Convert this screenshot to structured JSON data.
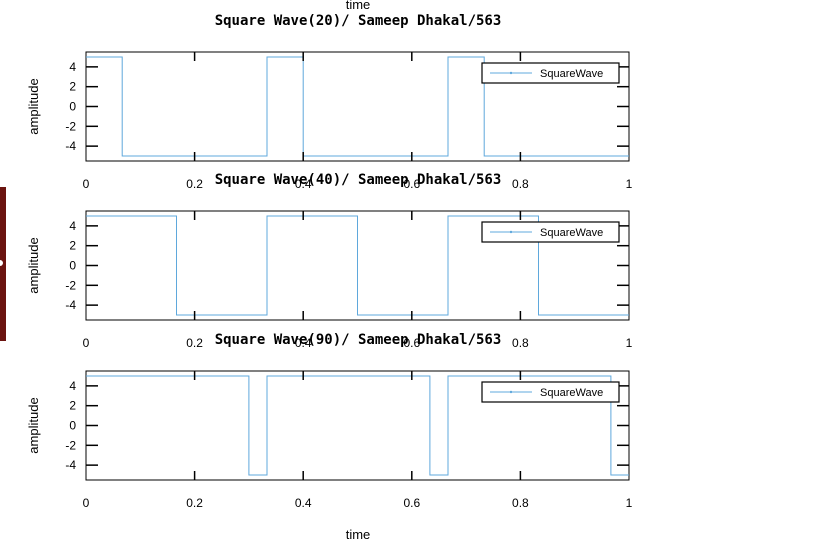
{
  "figure": {
    "top_xlabel": "time",
    "bottom_xlabel": "time",
    "colors": {
      "series": "#5fa8dc",
      "axes": "#000000",
      "background": "#ffffff",
      "side_tab": "#6b1410"
    }
  },
  "chart_data": [
    {
      "type": "line",
      "title": "Square Wave(20)/ Sameep Dhakal/563",
      "xlabel": "",
      "ylabel": "amplitude",
      "xlim": [
        0,
        1
      ],
      "ylim": [
        -5.5,
        5.5
      ],
      "xticks": [
        "0",
        "0.2",
        "0.4",
        "0.6",
        "0.8",
        "1"
      ],
      "yticks": [
        "4",
        "2",
        "0",
        "-2",
        "-4"
      ],
      "legend": {
        "placement": "top-right",
        "entries": [
          "SquareWave"
        ]
      },
      "series": [
        {
          "name": "SquareWave",
          "step": true,
          "x": [
            0,
            0.0667,
            0.3333,
            0.4,
            0.6667,
            0.7333,
            1
          ],
          "y": [
            5,
            -5,
            5,
            -5,
            5,
            -5,
            -5
          ]
        }
      ]
    },
    {
      "type": "line",
      "title": "Square Wave(40)/ Sameep Dhakal/563",
      "xlabel": "",
      "ylabel": "amplitude",
      "xlim": [
        0,
        1
      ],
      "ylim": [
        -5.5,
        5.5
      ],
      "xticks": [
        "0",
        "0.2",
        "0.4",
        "0.6",
        "0.8",
        "1"
      ],
      "yticks": [
        "4",
        "2",
        "0",
        "-2",
        "-4"
      ],
      "legend": {
        "placement": "top-right",
        "entries": [
          "SquareWave"
        ]
      },
      "series": [
        {
          "name": "SquareWave",
          "step": true,
          "x": [
            0,
            0.1667,
            0.3333,
            0.5,
            0.6667,
            0.8333,
            1
          ],
          "y": [
            5,
            -5,
            5,
            -5,
            5,
            -5,
            -5
          ]
        }
      ]
    },
    {
      "type": "line",
      "title": "Square Wave(90)/ Sameep Dhakal/563",
      "xlabel": "time",
      "ylabel": "amplitude",
      "xlim": [
        0,
        1
      ],
      "ylim": [
        -5.5,
        5.5
      ],
      "xticks": [
        "0",
        "0.2",
        "0.4",
        "0.6",
        "0.8",
        "1"
      ],
      "yticks": [
        "4",
        "2",
        "0",
        "-2",
        "-4"
      ],
      "legend": {
        "placement": "top-right",
        "entries": [
          "SquareWave"
        ]
      },
      "series": [
        {
          "name": "SquareWave",
          "step": true,
          "x": [
            0,
            0.3,
            0.3333,
            0.6333,
            0.6667,
            0.9667,
            1
          ],
          "y": [
            5,
            -5,
            5,
            -5,
            5,
            -5,
            -5
          ]
        }
      ]
    }
  ]
}
